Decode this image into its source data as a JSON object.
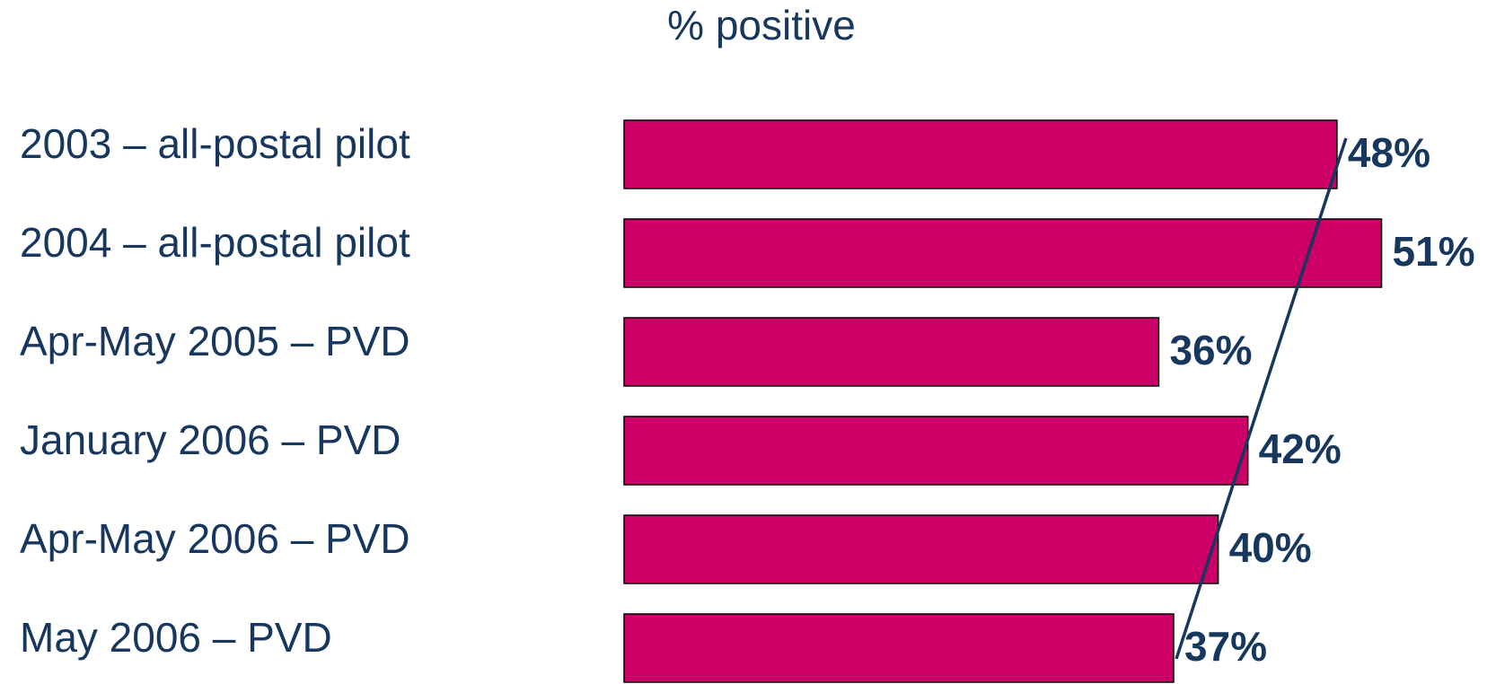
{
  "chart_data": {
    "type": "hbar",
    "title": "% positive",
    "categories": [
      "2003 – all-postal pilot",
      "2004 – all-postal pilot",
      "Apr-May 2005 – PVD",
      "January 2006 – PVD",
      "Apr-May 2006 – PVD",
      "May 2006 – PVD"
    ],
    "values": [
      48,
      51,
      36,
      42,
      40,
      37
    ],
    "value_labels": [
      "48%",
      "51%",
      "36%",
      "42%",
      "40%",
      "37%"
    ],
    "color": "#cc0066"
  }
}
